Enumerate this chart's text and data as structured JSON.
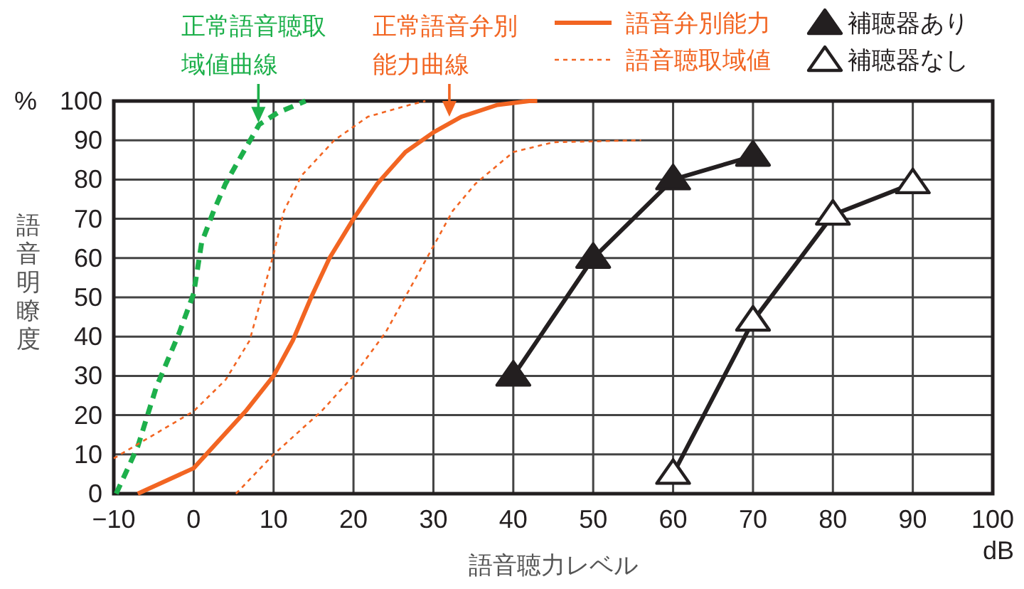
{
  "chart_data": {
    "type": "line",
    "xlabel": "語音聴力レベル",
    "ylabel": "語音明瞭度",
    "xlim": [
      -10,
      100
    ],
    "ylim": [
      0,
      100
    ],
    "xticks": [
      {
        "value": -10,
        "label": "−10"
      },
      0,
      10,
      20,
      30,
      40,
      50,
      60,
      70,
      80,
      90,
      100
    ],
    "yticks": [
      0,
      10,
      20,
      30,
      40,
      50,
      60,
      70,
      80,
      90,
      100
    ],
    "grid": true,
    "legend": "top right",
    "series": [
      {
        "color": "#1db04b",
        "line_style": "dashed",
        "x": [
          -9.7,
          -7,
          -4.7,
          -1.8,
          0,
          1,
          2.5,
          4,
          6.5,
          8.2,
          10.5,
          14
        ],
        "values": [
          0,
          12,
          27,
          41,
          51,
          64,
          72,
          79,
          88,
          94,
          97,
          100
        ]
      },
      {
        "name": "語音弁別能力",
        "color": "#f26522",
        "line_style": "solid",
        "x": [
          -7,
          0,
          6.5,
          10,
          12.4,
          14.7,
          17,
          20,
          23,
          26.5,
          30,
          33.5,
          38,
          42,
          43
        ],
        "values": [
          0,
          6.5,
          21,
          30,
          39,
          50,
          60,
          70,
          79,
          87,
          92,
          96,
          99,
          100,
          100
        ]
      },
      {
        "name": "語音聴取域値",
        "color": "#f26522",
        "line_style": "dotted",
        "x": [
          -10,
          0,
          4,
          7,
          10,
          11.3,
          13.5,
          17.6,
          21.8,
          27,
          29
        ],
        "values": [
          9,
          21,
          29,
          39,
          61,
          72,
          81,
          90,
          96,
          99,
          100
        ]
      },
      {
        "color": "#f26522",
        "line_style": "dotted",
        "x": [
          5.3,
          10,
          16,
          20,
          24,
          27,
          30,
          32.4,
          35.3,
          40,
          45,
          56
        ],
        "values": [
          0,
          10,
          21,
          30,
          41,
          52,
          63,
          72,
          79,
          87,
          89.5,
          90
        ]
      },
      {
        "name": "補聴器あり",
        "color": "#231f20",
        "marker": "triangle",
        "line_style": "solid",
        "x": [
          40,
          50,
          60,
          70
        ],
        "values": [
          30,
          60,
          80,
          86
        ]
      },
      {
        "name": "補聴器なし",
        "color": "#231f20",
        "colors": [
          "#ffffff",
          "#ffffff",
          "#ffffff",
          "#ffffff"
        ],
        "marker": "triangle",
        "line_style": "solid",
        "x": [
          60,
          70,
          80,
          90
        ],
        "values": [
          5,
          44,
          71,
          79
        ]
      }
    ],
    "annotations": [
      {
        "text": "正常語音聴取域値曲線",
        "x": 8.1,
        "y": 94.5
      },
      {
        "text": "正常語音弁別能力曲線",
        "x": 32,
        "y": 96
      },
      "%",
      "dB"
    ]
  }
}
